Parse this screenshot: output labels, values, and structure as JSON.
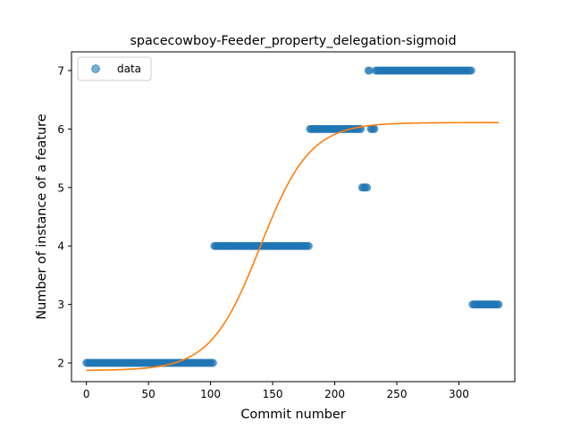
{
  "chart_data": {
    "type": "scatter",
    "title": "spacecowboy-Feeder_property_delegation-sigmoid",
    "xlabel": "Commit number",
    "ylabel": "Number of instance of a feature",
    "xlim": [
      -12,
      345
    ],
    "ylim": [
      1.68,
      7.32
    ],
    "x_ticks": [
      0,
      50,
      100,
      150,
      200,
      250,
      300
    ],
    "y_ticks": [
      2,
      3,
      4,
      5,
      6,
      7
    ],
    "grid": false,
    "legend": {
      "placement": "top-left",
      "entries": [
        "data"
      ]
    },
    "series": [
      {
        "name": "data",
        "marker": "circle",
        "color": "#1f77b4",
        "alpha": 0.6,
        "segments": [
          {
            "x_start": 0,
            "x_end": 102,
            "y": 2
          },
          {
            "x_start": 103,
            "x_end": 179,
            "y": 4
          },
          {
            "x_start": 180,
            "x_end": 221,
            "y": 6
          },
          {
            "x_start": 222,
            "x_end": 226,
            "y": 5
          },
          {
            "x_start": 227,
            "x_end": 228,
            "y": 7
          },
          {
            "x_start": 229,
            "x_end": 232,
            "y": 6
          },
          {
            "x_start": 233,
            "x_end": 310,
            "y": 7
          },
          {
            "x_start": 311,
            "x_end": 332,
            "y": 3
          }
        ]
      },
      {
        "name": "",
        "type": "line",
        "color": "#ff7f0e",
        "model": "sigmoid",
        "params": {
          "lower": 1.87,
          "upper": 6.11,
          "midpoint": 140,
          "scale": 20
        },
        "x_range": [
          0,
          332
        ]
      }
    ]
  }
}
